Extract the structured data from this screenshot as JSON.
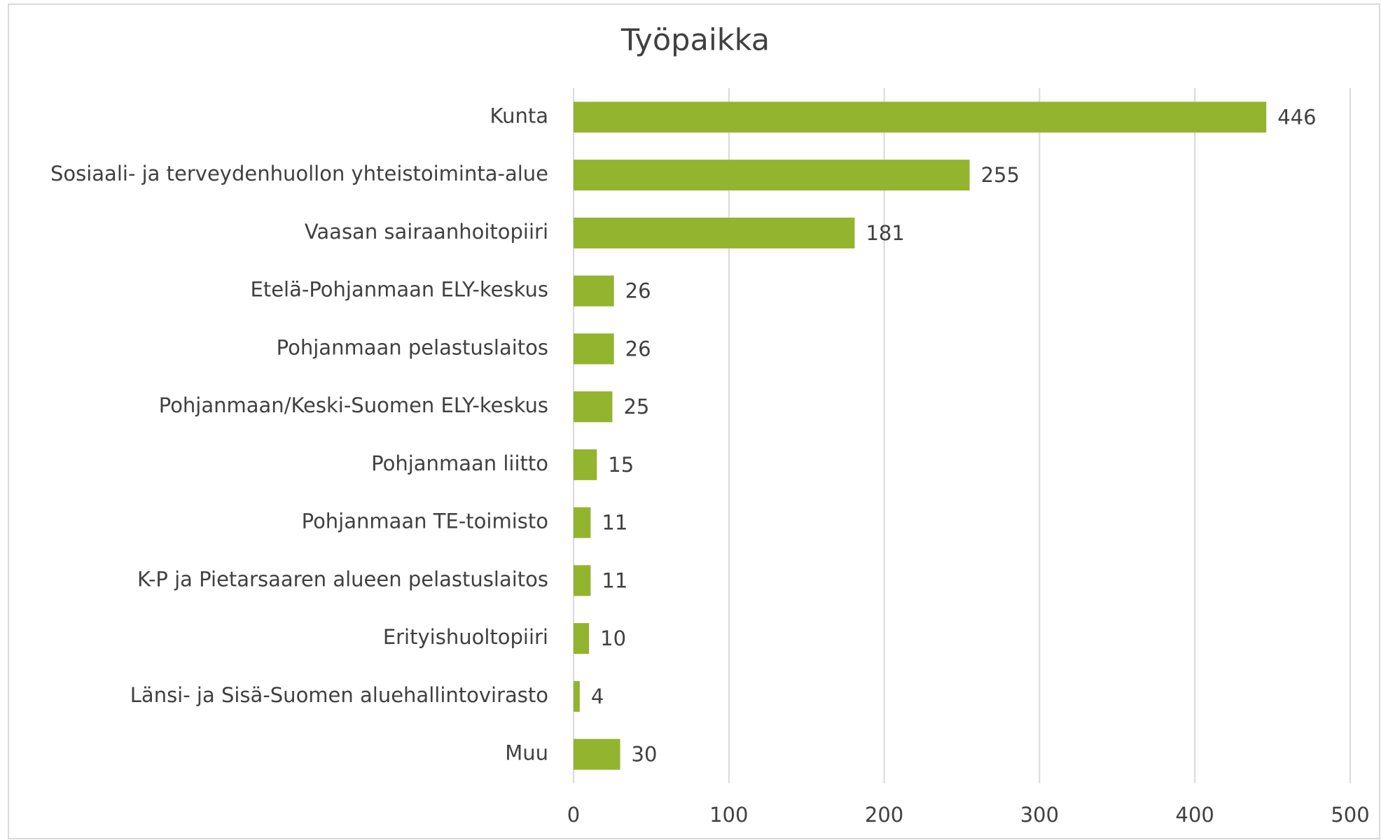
{
  "chart_data": {
    "type": "bar",
    "orientation": "horizontal",
    "title": "Työpaikka",
    "categories": [
      "Kunta",
      "Sosiaali- ja terveydenhuollon yhteistoiminta-alue",
      "Vaasan sairaanhoitopiiri",
      "Etelä-Pohjanmaan ELY-keskus",
      "Pohjanmaan pelastuslaitos",
      "Pohjanmaan/Keski-Suomen ELY-keskus",
      "Pohjanmaan liitto",
      "Pohjanmaan TE-toimisto",
      "K-P ja Pietarsaaren alueen pelastuslaitos",
      "Erityishuoltopiiri",
      "Länsi- ja Sisä-Suomen aluehallintovirasto",
      "Muu"
    ],
    "values": [
      446,
      255,
      181,
      26,
      26,
      25,
      15,
      11,
      11,
      10,
      4,
      30
    ],
    "color": "#92b42f",
    "xlim": [
      0,
      500
    ],
    "xticks": [
      0,
      100,
      200,
      300,
      400,
      500
    ],
    "grid": true
  }
}
